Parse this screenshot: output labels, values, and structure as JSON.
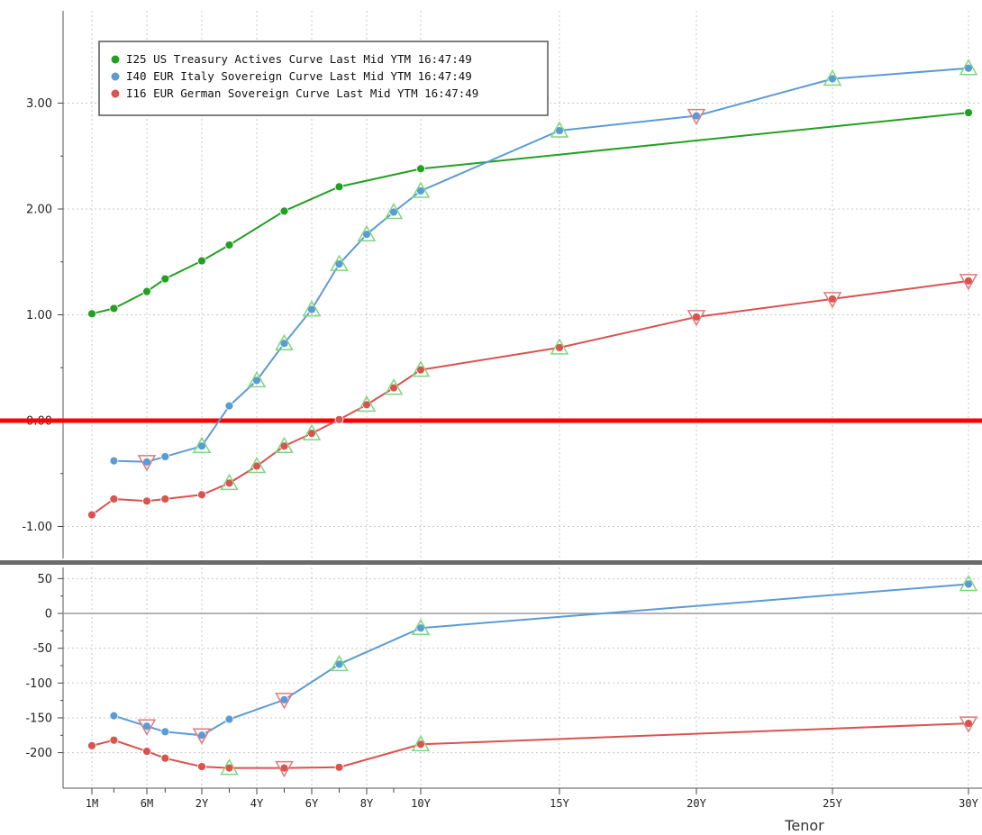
{
  "chart_data": [
    {
      "type": "line",
      "xlabel": "Tenor",
      "x_ticks": [
        "1M",
        "6M",
        "2Y",
        "4Y",
        "6Y",
        "8Y",
        "10Y",
        "15Y",
        "20Y",
        "25Y",
        "30Y"
      ],
      "ylim": [
        -1.2,
        3.8
      ],
      "y_ticks": [
        "3.00",
        "2.00",
        "1.00",
        "0.00",
        "-1.00"
      ],
      "grid": true,
      "legend_position": "top-left",
      "reference_line": {
        "y": 0,
        "color": "#ff0000"
      },
      "series": [
        {
          "name": "I25 US Treasury Actives Curve Last Mid YTM 16:47:49",
          "color": "#22a022",
          "points": [
            [
              0.0833,
              1.01
            ],
            [
              0.25,
              1.06
            ],
            [
              0.5,
              1.22
            ],
            [
              1,
              1.34
            ],
            [
              2,
              1.51
            ],
            [
              3,
              1.66
            ],
            [
              5,
              1.98
            ],
            [
              7,
              2.21
            ],
            [
              10,
              2.38
            ],
            [
              30,
              2.91
            ]
          ]
        },
        {
          "name": "I40 EUR Italy Sovereign Curve Last Mid YTM 16:47:49",
          "color": "#5b9bd5",
          "points": [
            [
              0.25,
              -0.38
            ],
            [
              0.5,
              -0.39
            ],
            [
              1,
              -0.34
            ],
            [
              2,
              -0.24
            ],
            [
              3,
              0.14
            ],
            [
              4,
              0.38
            ],
            [
              5,
              0.73
            ],
            [
              6,
              1.05
            ],
            [
              7,
              1.48
            ],
            [
              8,
              1.76
            ],
            [
              9,
              1.97
            ],
            [
              10,
              2.17
            ],
            [
              15,
              2.74
            ],
            [
              20,
              2.88
            ],
            [
              25,
              3.23
            ],
            [
              30,
              3.33
            ]
          ]
        },
        {
          "name": "I16 EUR German Sovereign Curve Last Mid YTM 16:47:49",
          "color": "#d9534f",
          "points": [
            [
              0.0833,
              -0.89
            ],
            [
              0.25,
              -0.74
            ],
            [
              0.5,
              -0.76
            ],
            [
              1,
              -0.74
            ],
            [
              2,
              -0.7
            ],
            [
              3,
              -0.59
            ],
            [
              4,
              -0.43
            ],
            [
              5,
              -0.24
            ],
            [
              6,
              -0.12
            ],
            [
              7,
              0.01
            ],
            [
              8,
              0.15
            ],
            [
              9,
              0.31
            ],
            [
              10,
              0.48
            ],
            [
              15,
              0.69
            ],
            [
              20,
              0.98
            ],
            [
              25,
              1.15
            ],
            [
              30,
              1.32
            ]
          ]
        }
      ],
      "triangle_markers": [
        {
          "series": 1,
          "x": 0.5,
          "dir": "down"
        },
        {
          "series": 1,
          "x": 2,
          "dir": "up"
        },
        {
          "series": 1,
          "x": 4,
          "dir": "up"
        },
        {
          "series": 1,
          "x": 5,
          "dir": "up"
        },
        {
          "series": 1,
          "x": 6,
          "dir": "up"
        },
        {
          "series": 1,
          "x": 7,
          "dir": "up"
        },
        {
          "series": 1,
          "x": 8,
          "dir": "up"
        },
        {
          "series": 1,
          "x": 9,
          "dir": "up"
        },
        {
          "series": 1,
          "x": 10,
          "dir": "up"
        },
        {
          "series": 1,
          "x": 15,
          "dir": "up"
        },
        {
          "series": 1,
          "x": 20,
          "dir": "down"
        },
        {
          "series": 1,
          "x": 25,
          "dir": "up"
        },
        {
          "series": 1,
          "x": 30,
          "dir": "up"
        },
        {
          "series": 2,
          "x": 3,
          "dir": "up"
        },
        {
          "series": 2,
          "x": 4,
          "dir": "up"
        },
        {
          "series": 2,
          "x": 5,
          "dir": "up"
        },
        {
          "series": 2,
          "x": 6,
          "dir": "up"
        },
        {
          "series": 2,
          "x": 8,
          "dir": "up"
        },
        {
          "series": 2,
          "x": 9,
          "dir": "up"
        },
        {
          "series": 2,
          "x": 10,
          "dir": "up"
        },
        {
          "series": 2,
          "x": 15,
          "dir": "up"
        },
        {
          "series": 2,
          "x": 20,
          "dir": "down"
        },
        {
          "series": 2,
          "x": 25,
          "dir": "down"
        },
        {
          "series": 2,
          "x": 30,
          "dir": "down"
        }
      ]
    },
    {
      "type": "line",
      "ylim": [
        -250,
        65
      ],
      "y_ticks": [
        "50",
        "0",
        "-50",
        "-100",
        "-150",
        "-200"
      ],
      "grid": true,
      "series": [
        {
          "color": "#5b9bd5",
          "points": [
            [
              0.25,
              -147
            ],
            [
              0.5,
              -162
            ],
            [
              1,
              -170
            ],
            [
              2,
              -175
            ],
            [
              3,
              -152
            ],
            [
              5,
              -124
            ],
            [
              7,
              -73
            ],
            [
              10,
              -21
            ],
            [
              30,
              42
            ]
          ]
        },
        {
          "color": "#d9534f",
          "points": [
            [
              0.0833,
              -190
            ],
            [
              0.25,
              -182
            ],
            [
              0.5,
              -198
            ],
            [
              1,
              -208
            ],
            [
              2,
              -220
            ],
            [
              3,
              -222
            ],
            [
              5,
              -222
            ],
            [
              7,
              -221
            ],
            [
              10,
              -188
            ],
            [
              30,
              -158
            ]
          ]
        }
      ],
      "triangle_markers": [
        {
          "series": 0,
          "x": 0.5,
          "dir": "down"
        },
        {
          "series": 0,
          "x": 2,
          "dir": "down"
        },
        {
          "series": 0,
          "x": 5,
          "dir": "down"
        },
        {
          "series": 0,
          "x": 7,
          "dir": "up"
        },
        {
          "series": 0,
          "x": 10,
          "dir": "up"
        },
        {
          "series": 0,
          "x": 30,
          "dir": "up"
        },
        {
          "series": 1,
          "x": 3,
          "dir": "up"
        },
        {
          "series": 1,
          "x": 5,
          "dir": "down"
        },
        {
          "series": 1,
          "x": 10,
          "dir": "up"
        },
        {
          "series": 1,
          "x": 30,
          "dir": "down"
        }
      ]
    }
  ]
}
